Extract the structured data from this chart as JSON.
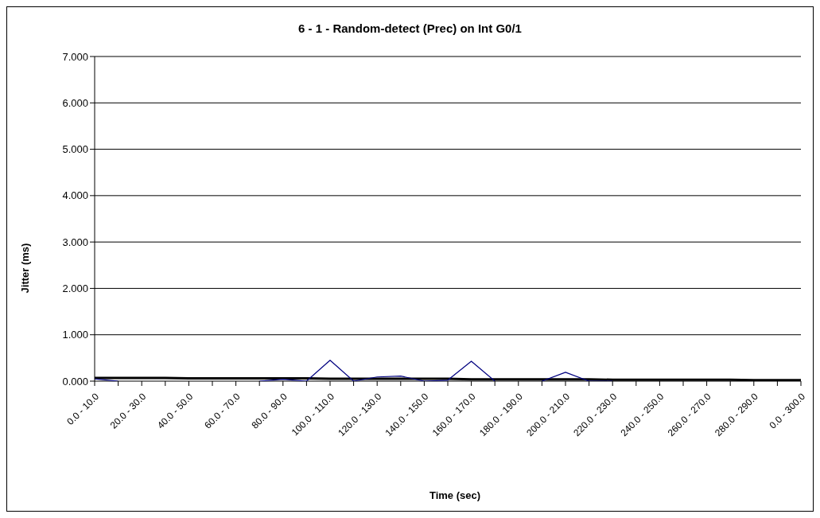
{
  "chart_data": {
    "type": "line",
    "title": "6 - 1 - Random-detect (Prec) on Int G0/1",
    "xlabel": "Time (sec)",
    "ylabel": "Jitter (ms)",
    "categories": [
      "0.0 - 10.0",
      null,
      "20.0 - 30.0",
      null,
      "40.0 - 50.0",
      null,
      "60.0 - 70.0",
      null,
      "80.0 - 90.0",
      null,
      "100.0 - 110.0",
      null,
      "120.0 - 130.0",
      null,
      "140.0 - 150.0",
      null,
      "160.0 - 170.0",
      null,
      "180.0 - 190.0",
      null,
      "200.0 - 210.0",
      null,
      "220.0 - 230.0",
      null,
      "240.0 - 250.0",
      null,
      "260.0 - 270.0",
      null,
      "280.0 - 290.0",
      null,
      "0.0 - 300.0"
    ],
    "series": [
      {
        "color": "#000080",
        "values": [
          0.05,
          0.0,
          null,
          null,
          null,
          null,
          null,
          0.0,
          0.04,
          0.0,
          0.45,
          0.0,
          0.09,
          0.11,
          0.0,
          0.02,
          0.43,
          0.0,
          null,
          0.0,
          0.19,
          0.0,
          0.0,
          null,
          null,
          null,
          null,
          null,
          null,
          null,
          null
        ]
      },
      {
        "color": "#000000",
        "values": [
          0.07,
          0.07,
          0.07,
          0.07,
          0.06,
          0.06,
          0.06,
          0.06,
          0.06,
          0.06,
          0.05,
          0.05,
          0.05,
          0.05,
          0.05,
          0.05,
          0.04,
          0.04,
          0.04,
          0.04,
          0.04,
          0.04,
          0.03,
          0.03,
          0.03,
          0.03,
          0.03,
          0.03,
          0.02,
          0.02,
          0.02
        ]
      }
    ],
    "ylim": [
      0,
      7
    ],
    "yticks": [
      {
        "value": 0,
        "label": "0.000"
      },
      {
        "value": 1,
        "label": "1.000"
      },
      {
        "value": 2,
        "label": "2.000"
      },
      {
        "value": 3,
        "label": "3.000"
      },
      {
        "value": 4,
        "label": "4.000"
      },
      {
        "value": 5,
        "label": "5.000"
      },
      {
        "value": 6,
        "label": "6.000"
      },
      {
        "value": 7,
        "label": "7.000"
      }
    ],
    "grid": "y",
    "legend": false,
    "marker": "none"
  }
}
